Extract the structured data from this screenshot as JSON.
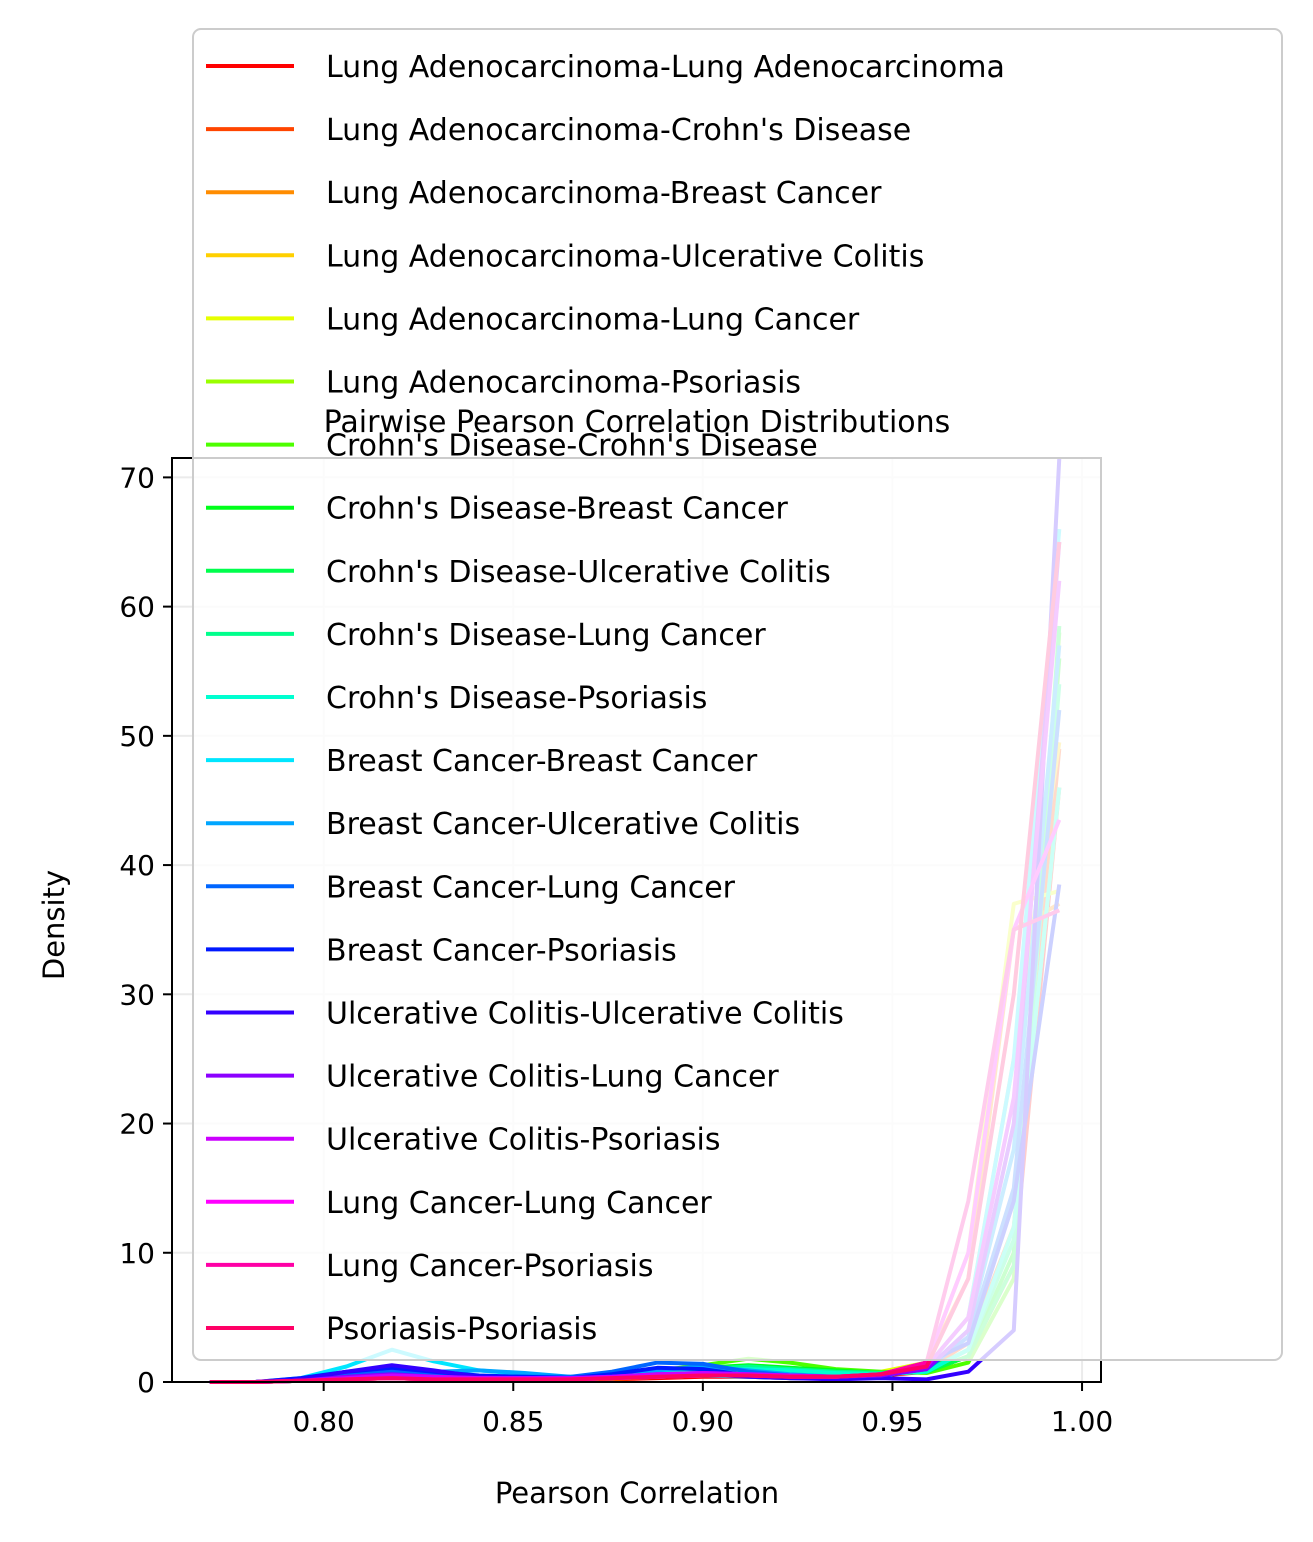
{
  "chart_data": {
    "type": "line",
    "title": "Pairwise Pearson Correlation Distributions",
    "xlabel": "Pearson Correlation",
    "ylabel": "Density",
    "xlim": [
      0.76,
      1.005
    ],
    "ylim": [
      0,
      71.5
    ],
    "xticks": [
      0.8,
      0.85,
      0.9,
      0.95,
      1.0
    ],
    "xtick_labels": [
      "0.80",
      "0.85",
      "0.90",
      "0.95",
      "1.00"
    ],
    "yticks": [
      0,
      10,
      20,
      30,
      40,
      50,
      60,
      70
    ],
    "ytick_labels": [
      "0",
      "10",
      "20",
      "30",
      "40",
      "50",
      "60",
      "70"
    ],
    "grid": true,
    "legend_position": "top-right",
    "x": [
      0.77,
      0.782,
      0.794,
      0.806,
      0.818,
      0.829,
      0.841,
      0.853,
      0.865,
      0.876,
      0.888,
      0.9,
      0.912,
      0.923,
      0.935,
      0.947,
      0.959,
      0.97,
      0.982,
      0.994
    ],
    "series": [
      {
        "name": "Lung Adenocarcinoma-Lung Adenocarcinoma",
        "color": "#ff0000",
        "values": [
          0,
          0,
          0.1,
          0.2,
          0.3,
          0.2,
          0.2,
          0.1,
          0.1,
          0.2,
          0.3,
          0.4,
          0.4,
          0.3,
          0.3,
          0.5,
          0.8,
          2.0,
          9.0,
          46.0
        ]
      },
      {
        "name": "Lung Adenocarcinoma-Crohn's Disease",
        "color": "#ff4500",
        "values": [
          0,
          0,
          0.1,
          0.3,
          0.4,
          0.3,
          0.2,
          0.2,
          0.2,
          0.2,
          0.4,
          0.5,
          0.6,
          0.5,
          0.4,
          0.6,
          1.0,
          3.0,
          12.0,
          49.0
        ]
      },
      {
        "name": "Lung Adenocarcinoma-Breast Cancer",
        "color": "#ff8c00",
        "values": [
          0,
          0,
          0.1,
          0.4,
          0.6,
          0.4,
          0.3,
          0.2,
          0.2,
          0.3,
          0.5,
          0.6,
          0.6,
          0.5,
          0.4,
          0.7,
          1.5,
          8.0,
          35.0,
          37.0
        ]
      },
      {
        "name": "Lung Adenocarcinoma-Ulcerative Colitis",
        "color": "#ffd000",
        "values": [
          0,
          0,
          0.1,
          0.3,
          0.4,
          0.3,
          0.2,
          0.2,
          0.2,
          0.3,
          0.4,
          0.5,
          0.6,
          0.5,
          0.4,
          0.6,
          1.2,
          5.0,
          25.0,
          49.5
        ]
      },
      {
        "name": "Lung Adenocarcinoma-Lung Cancer",
        "color": "#e6ff00",
        "values": [
          0,
          0,
          0.1,
          0.3,
          0.5,
          0.3,
          0.2,
          0.2,
          0.2,
          0.3,
          0.5,
          0.6,
          0.7,
          0.6,
          0.5,
          0.8,
          1.5,
          10.0,
          37.0,
          38.0
        ]
      },
      {
        "name": "Lung Adenocarcinoma-Psoriasis",
        "color": "#9aff00",
        "values": [
          0,
          0,
          0.1,
          0.2,
          0.3,
          0.2,
          0.2,
          0.2,
          0.2,
          0.3,
          0.5,
          0.8,
          1.2,
          1.0,
          0.7,
          0.6,
          0.8,
          2.5,
          12.0,
          46.0
        ]
      },
      {
        "name": "Crohn's Disease-Crohn's Disease",
        "color": "#4dff00",
        "values": [
          0,
          0,
          0.1,
          0.2,
          0.4,
          0.3,
          0.3,
          0.3,
          0.3,
          0.5,
          0.9,
          1.3,
          1.8,
          1.5,
          1.0,
          0.8,
          0.7,
          1.5,
          8.0,
          58.0
        ]
      },
      {
        "name": "Crohn's Disease-Breast Cancer",
        "color": "#00ff1a",
        "values": [
          0,
          0,
          0.1,
          0.3,
          0.5,
          0.4,
          0.3,
          0.3,
          0.3,
          0.5,
          0.8,
          1.1,
          1.3,
          1.1,
          0.9,
          0.7,
          0.8,
          2.0,
          10.0,
          56.0
        ]
      },
      {
        "name": "Crohn's Disease-Ulcerative Colitis",
        "color": "#00ff4d",
        "values": [
          0,
          0,
          0.1,
          0.2,
          0.4,
          0.3,
          0.3,
          0.3,
          0.3,
          0.5,
          0.8,
          1.0,
          1.2,
          1.0,
          0.8,
          0.7,
          0.8,
          2.0,
          9.0,
          58.5
        ]
      },
      {
        "name": "Crohn's Disease-Lung Cancer",
        "color": "#00ff8c",
        "values": [
          0,
          0,
          0.1,
          0.3,
          0.5,
          0.4,
          0.3,
          0.3,
          0.3,
          0.5,
          0.8,
          1.0,
          1.2,
          1.0,
          0.8,
          0.7,
          0.9,
          2.5,
          11.0,
          54.0
        ]
      },
      {
        "name": "Crohn's Disease-Psoriasis",
        "color": "#00ffd0",
        "values": [
          0,
          0,
          0.1,
          0.3,
          0.5,
          0.4,
          0.3,
          0.3,
          0.3,
          0.4,
          0.7,
          0.9,
          1.0,
          0.9,
          0.7,
          0.6,
          0.8,
          2.5,
          12.0,
          46.0
        ]
      },
      {
        "name": "Breast Cancer-Breast Cancer",
        "color": "#00e6ff",
        "values": [
          0,
          0,
          0.3,
          1.2,
          2.5,
          1.6,
          0.9,
          0.6,
          0.3,
          0.3,
          0.4,
          0.5,
          0.4,
          0.3,
          0.3,
          0.4,
          1.2,
          5.0,
          25.0,
          66.0
        ]
      },
      {
        "name": "Breast Cancer-Ulcerative Colitis",
        "color": "#00a6ff",
        "values": [
          0,
          0,
          0.2,
          0.6,
          1.0,
          0.8,
          0.9,
          0.7,
          0.4,
          0.5,
          0.9,
          1.2,
          0.9,
          0.6,
          0.4,
          0.5,
          1.0,
          4.0,
          18.0,
          57.0
        ]
      },
      {
        "name": "Breast Cancer-Lung Cancer",
        "color": "#0066ff",
        "values": [
          0,
          0,
          0.2,
          0.5,
          0.8,
          0.6,
          0.4,
          0.4,
          0.4,
          0.8,
          1.5,
          1.4,
          0.8,
          0.5,
          0.4,
          0.5,
          1.0,
          3.5,
          15.0,
          52.0
        ]
      },
      {
        "name": "Breast Cancer-Psoriasis",
        "color": "#0019ff",
        "values": [
          0,
          0,
          0.3,
          0.8,
          1.1,
          0.8,
          0.5,
          0.4,
          0.3,
          0.6,
          1.1,
          1.0,
          0.5,
          0.3,
          0.3,
          0.6,
          1.5,
          3.0,
          14.0,
          38.5
        ]
      },
      {
        "name": "Ulcerative Colitis-Ulcerative Colitis",
        "color": "#3300ff",
        "values": [
          0,
          0,
          0.2,
          0.8,
          1.3,
          0.9,
          0.4,
          0.3,
          0.2,
          0.3,
          0.5,
          0.6,
          0.4,
          0.3,
          0.2,
          0.3,
          0.2,
          0.8,
          4.0,
          71.5
        ]
      },
      {
        "name": "Ulcerative Colitis-Lung Cancer",
        "color": "#8c00ff",
        "values": [
          0,
          0,
          0.1,
          0.4,
          0.6,
          0.4,
          0.3,
          0.3,
          0.3,
          0.4,
          0.6,
          0.7,
          0.6,
          0.5,
          0.4,
          0.5,
          1.0,
          4.0,
          20.0,
          65.0
        ]
      },
      {
        "name": "Ulcerative Colitis-Psoriasis",
        "color": "#cc00ff",
        "values": [
          0,
          0,
          0.1,
          0.3,
          0.5,
          0.4,
          0.3,
          0.3,
          0.3,
          0.4,
          0.6,
          0.7,
          0.6,
          0.5,
          0.4,
          0.6,
          1.2,
          5.0,
          22.0,
          62.0
        ]
      },
      {
        "name": "Lung Cancer-Lung Cancer",
        "color": "#ff00ff",
        "values": [
          0,
          0,
          0.1,
          0.2,
          0.3,
          0.2,
          0.2,
          0.2,
          0.2,
          0.3,
          0.4,
          0.5,
          0.5,
          0.4,
          0.4,
          0.6,
          1.5,
          10.0,
          35.0,
          43.5
        ]
      },
      {
        "name": "Lung Cancer-Psoriasis",
        "color": "#ff00a6",
        "values": [
          0,
          0,
          0.1,
          0.2,
          0.3,
          0.2,
          0.2,
          0.2,
          0.2,
          0.3,
          0.4,
          0.5,
          0.5,
          0.4,
          0.4,
          0.6,
          1.5,
          14.0,
          35.0,
          36.5
        ]
      },
      {
        "name": "Psoriasis-Psoriasis",
        "color": "#ff0066",
        "values": [
          0,
          0,
          0.1,
          0.2,
          0.3,
          0.2,
          0.2,
          0.2,
          0.2,
          0.3,
          0.4,
          0.5,
          0.5,
          0.4,
          0.4,
          0.6,
          1.2,
          8.0,
          30.0,
          65.0
        ]
      }
    ]
  }
}
